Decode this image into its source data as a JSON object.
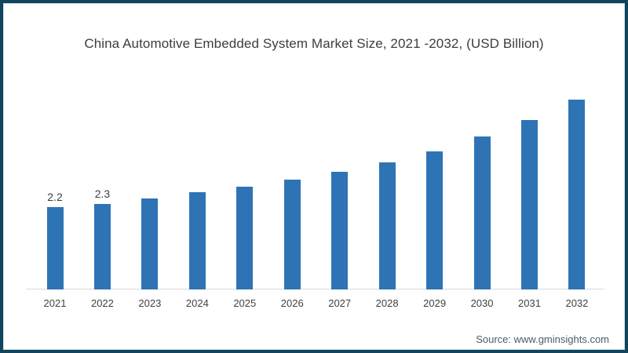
{
  "page": {
    "border_color": "#10455b",
    "background_color": "#ffffff"
  },
  "title": "China Automotive Embedded System Market Size, 2021 -2032, (USD Billion)",
  "source_note": "Source: www.gminsights.com",
  "chart_data": {
    "type": "bar",
    "title": "China Automotive Embedded System Market Size, 2021 -2032, (USD Billion)",
    "unit": "USD Billion",
    "categories": [
      "2021",
      "2022",
      "2023",
      "2024",
      "2025",
      "2026",
      "2027",
      "2028",
      "2029",
      "2030",
      "2031",
      "2032"
    ],
    "values": [
      2.2,
      2.3,
      2.45,
      2.6,
      2.75,
      2.95,
      3.15,
      3.4,
      3.7,
      4.1,
      4.55,
      5.1
    ],
    "data_labels": [
      "2.2",
      "2.3",
      "",
      "",
      "",
      "",
      "",
      "",
      "",
      "",
      "",
      ""
    ],
    "bar_color": "#2e74b5",
    "axis_line_color": "#d9d9d9",
    "label_color": "#404040",
    "ylim": [
      0,
      5.5
    ],
    "grid": false,
    "legend": "none"
  }
}
